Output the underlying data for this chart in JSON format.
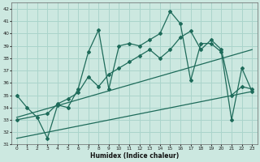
{
  "xlabel": "Humidex (Indice chaleur)",
  "xlim": [
    -0.5,
    23.5
  ],
  "ylim": [
    31,
    42.5
  ],
  "yticks": [
    31,
    32,
    33,
    34,
    35,
    36,
    37,
    38,
    39,
    40,
    41,
    42
  ],
  "xticks": [
    0,
    1,
    2,
    3,
    4,
    5,
    6,
    7,
    8,
    9,
    10,
    11,
    12,
    13,
    14,
    15,
    16,
    17,
    18,
    19,
    20,
    21,
    22,
    23
  ],
  "bg_color": "#cce8e0",
  "grid_color": "#aad4cb",
  "line_color": "#1e6b5a",
  "line1_x": [
    0,
    1,
    2,
    3,
    4,
    5,
    6,
    7,
    8,
    9,
    10,
    11,
    12,
    13,
    14,
    15,
    16,
    17,
    18,
    19,
    20,
    21,
    22,
    23
  ],
  "line1_y": [
    35.0,
    34.0,
    33.2,
    31.5,
    34.2,
    34.0,
    35.5,
    38.5,
    40.3,
    35.5,
    39.0,
    39.2,
    39.0,
    39.5,
    40.0,
    41.8,
    40.8,
    36.2,
    39.2,
    39.2,
    38.5,
    33.0,
    37.2,
    35.3
  ],
  "line2_x": [
    0,
    3,
    4,
    5,
    6,
    7,
    8,
    9,
    10,
    11,
    12,
    13,
    14,
    15,
    16,
    17,
    18,
    19,
    20,
    21,
    22,
    23
  ],
  "line2_y": [
    33.0,
    33.5,
    34.3,
    34.7,
    35.2,
    36.5,
    35.7,
    36.7,
    37.2,
    37.7,
    38.2,
    38.7,
    38.0,
    38.7,
    39.7,
    40.2,
    38.7,
    39.5,
    38.7,
    35.0,
    35.7,
    35.5
  ],
  "trend1_x": [
    0,
    23
  ],
  "trend1_y": [
    33.2,
    38.7
  ],
  "trend2_x": [
    0,
    23
  ],
  "trend2_y": [
    31.5,
    35.3
  ]
}
